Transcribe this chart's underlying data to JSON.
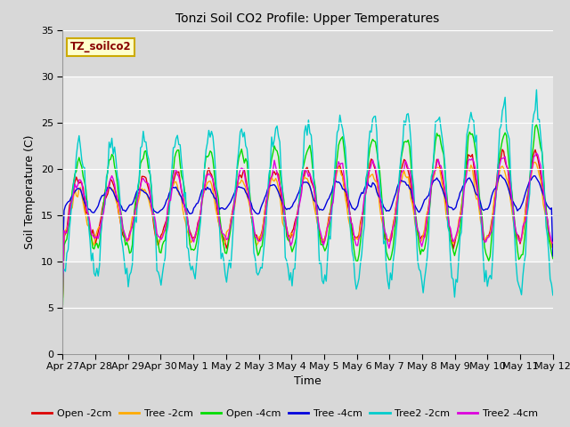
{
  "title": "Tonzi Soil CO2 Profile: Upper Temperatures",
  "ylabel": "Soil Temperature (C)",
  "xlabel": "Time",
  "annotation": "TZ_soilco2",
  "ylim": [
    0,
    35
  ],
  "yticks": [
    0,
    5,
    10,
    15,
    20,
    25,
    30,
    35
  ],
  "plot_bg_color": "#d8d8d8",
  "active_band_color": "#e8e8e8",
  "series": [
    {
      "label": "Open -2cm",
      "color": "#dd0000"
    },
    {
      "label": "Tree -2cm",
      "color": "#ffaa00"
    },
    {
      "label": "Open -4cm",
      "color": "#00dd00"
    },
    {
      "label": "Tree -4cm",
      "color": "#0000dd"
    },
    {
      "label": "Tree2 -2cm",
      "color": "#00cccc"
    },
    {
      "label": "Tree2 -4cm",
      "color": "#dd00dd"
    }
  ],
  "x_tick_labels": [
    "Apr 27",
    "Apr 28",
    "Apr 29",
    "Apr 30",
    "May 1",
    "May 2",
    "May 3",
    "May 4",
    "May 5",
    "May 6",
    "May 7",
    "May 8",
    "May 9",
    "May 10",
    "May 11",
    "May 12"
  ],
  "num_points": 360,
  "figsize": [
    6.4,
    4.8
  ],
  "dpi": 100
}
